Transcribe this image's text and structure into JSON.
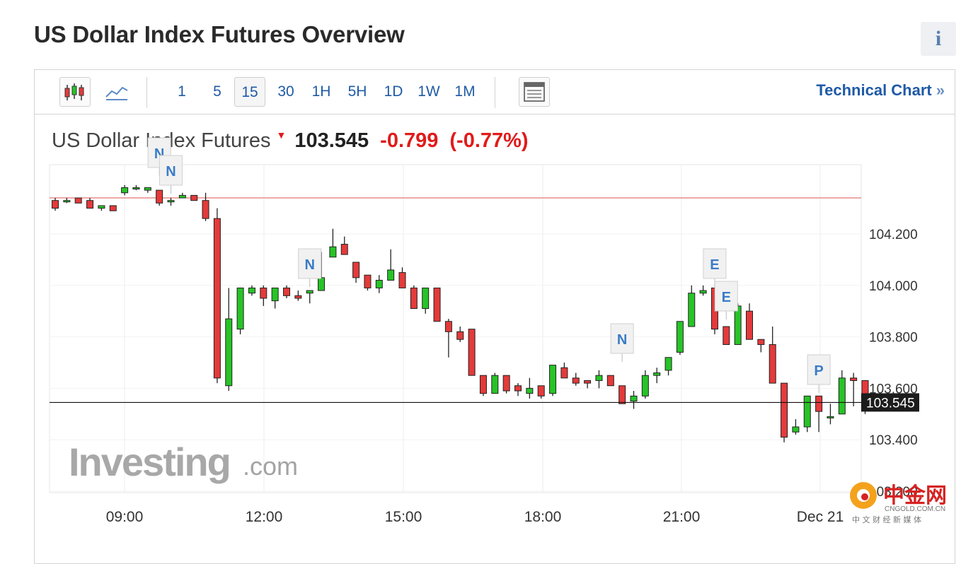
{
  "page": {
    "title": "US Dollar Index Futures Overview",
    "info_label": "i"
  },
  "toolbar": {
    "candles_icon": "candlestick-icon",
    "line_icon": "line-chart-icon",
    "timeframes": [
      "1",
      "5",
      "15",
      "30",
      "1H",
      "5H",
      "1D",
      "1W",
      "1M"
    ],
    "active_timeframe": "15",
    "table_icon": "table-icon",
    "technical_chart_label": "Technical Chart",
    "technical_chart_arrow": "»"
  },
  "quote": {
    "name": "US Dollar Index Futures",
    "price": "103.545",
    "change": "-0.799",
    "change_pct": "(-0.77%)",
    "direction": "down"
  },
  "colors": {
    "up": "#27c427",
    "down": "#e43a3a",
    "accent": "#1f5aa6",
    "ref_line": "#d9534f"
  },
  "watermark": {
    "brand": "Investing",
    "suffix": ".com",
    "corner_brand": "中金网",
    "corner_site": "CNGOLD.COM.CN",
    "corner_sub": "中 文 财 经 新 媒 体"
  },
  "chart_data": {
    "type": "candlestick",
    "x_ticks": [
      "09:00",
      "12:00",
      "15:00",
      "18:00",
      "21:00",
      "Dec 21"
    ],
    "y_ticks": [
      104.2,
      104.0,
      103.8,
      103.6,
      103.4,
      103.2
    ],
    "y_tick_labels": [
      "104.200",
      "104.000",
      "103.800",
      "103.600",
      "103.400",
      "103.200"
    ],
    "ylim": [
      103.2,
      104.44
    ],
    "previous_close": 104.34,
    "last_price": 103.545,
    "last_price_label": "103.545",
    "candles": [
      [
        104.33,
        104.3,
        104.34,
        104.29
      ],
      [
        104.33,
        104.33,
        104.34,
        104.32
      ],
      [
        104.34,
        104.32,
        104.34,
        104.32
      ],
      [
        104.33,
        104.3,
        104.34,
        104.3
      ],
      [
        104.3,
        104.31,
        104.31,
        104.29
      ],
      [
        104.31,
        104.29,
        104.31,
        104.29
      ],
      [
        104.36,
        104.38,
        104.39,
        104.35
      ],
      [
        104.38,
        104.38,
        104.39,
        104.37
      ],
      [
        104.37,
        104.38,
        104.38,
        104.36
      ],
      [
        104.37,
        104.32,
        104.37,
        104.31
      ],
      [
        104.33,
        104.33,
        104.34,
        104.31
      ],
      [
        104.34,
        104.35,
        104.36,
        104.34
      ],
      [
        104.35,
        104.33,
        104.35,
        104.33
      ],
      [
        104.33,
        104.26,
        104.36,
        104.25
      ],
      [
        104.26,
        103.64,
        104.3,
        103.62
      ],
      [
        103.61,
        103.87,
        103.99,
        103.59
      ],
      [
        103.83,
        103.99,
        103.99,
        103.81
      ],
      [
        103.97,
        103.99,
        104.0,
        103.96
      ],
      [
        103.99,
        103.95,
        104.0,
        103.92
      ],
      [
        103.94,
        103.99,
        103.99,
        103.91
      ],
      [
        103.99,
        103.96,
        104.0,
        103.95
      ],
      [
        103.96,
        103.95,
        103.98,
        103.94
      ],
      [
        103.97,
        103.98,
        103.98,
        103.93
      ],
      [
        103.98,
        104.03,
        104.13,
        103.98
      ],
      [
        104.11,
        104.15,
        104.22,
        104.11
      ],
      [
        104.16,
        104.12,
        104.19,
        104.12
      ],
      [
        104.09,
        104.03,
        104.09,
        104.01
      ],
      [
        104.04,
        103.99,
        104.04,
        103.98
      ],
      [
        103.99,
        104.02,
        104.04,
        103.97
      ],
      [
        104.02,
        104.06,
        104.14,
        104.02
      ],
      [
        104.05,
        103.99,
        104.07,
        103.99
      ],
      [
        103.99,
        103.91,
        104.0,
        103.91
      ],
      [
        103.91,
        103.99,
        103.99,
        103.89
      ],
      [
        103.99,
        103.86,
        103.99,
        103.86
      ],
      [
        103.86,
        103.82,
        103.87,
        103.72
      ],
      [
        103.82,
        103.79,
        103.84,
        103.78
      ],
      [
        103.83,
        103.65,
        103.83,
        103.65
      ],
      [
        103.65,
        103.58,
        103.65,
        103.57
      ],
      [
        103.58,
        103.65,
        103.66,
        103.58
      ],
      [
        103.65,
        103.59,
        103.65,
        103.58
      ],
      [
        103.61,
        103.59,
        103.62,
        103.57
      ],
      [
        103.58,
        103.6,
        103.64,
        103.56
      ],
      [
        103.61,
        103.57,
        103.61,
        103.56
      ],
      [
        103.58,
        103.69,
        103.69,
        103.57
      ],
      [
        103.68,
        103.64,
        103.7,
        103.64
      ],
      [
        103.64,
        103.62,
        103.66,
        103.61
      ],
      [
        103.63,
        103.62,
        103.63,
        103.6
      ],
      [
        103.63,
        103.65,
        103.67,
        103.6
      ],
      [
        103.65,
        103.61,
        103.65,
        103.61
      ],
      [
        103.61,
        103.54,
        103.61,
        103.54
      ],
      [
        103.55,
        103.57,
        103.59,
        103.52
      ],
      [
        103.57,
        103.65,
        103.67,
        103.56
      ],
      [
        103.65,
        103.66,
        103.68,
        103.62
      ],
      [
        103.67,
        103.72,
        103.72,
        103.65
      ],
      [
        103.74,
        103.86,
        103.86,
        103.73
      ],
      [
        103.84,
        103.97,
        104.0,
        103.84
      ],
      [
        103.97,
        103.98,
        104.0,
        103.96
      ],
      [
        103.99,
        103.83,
        103.99,
        103.81
      ],
      [
        103.84,
        103.77,
        103.84,
        103.77
      ],
      [
        103.77,
        103.92,
        103.93,
        103.77
      ],
      [
        103.9,
        103.79,
        103.93,
        103.79
      ],
      [
        103.79,
        103.77,
        103.79,
        103.74
      ],
      [
        103.77,
        103.62,
        103.84,
        103.62
      ],
      [
        103.62,
        103.41,
        103.62,
        103.39
      ],
      [
        103.43,
        103.45,
        103.48,
        103.42
      ],
      [
        103.45,
        103.57,
        103.57,
        103.43
      ],
      [
        103.57,
        103.51,
        103.57,
        103.43
      ],
      [
        103.49,
        103.49,
        103.54,
        103.46
      ],
      [
        103.5,
        103.64,
        103.67,
        103.5
      ],
      [
        103.64,
        103.63,
        103.66,
        103.53
      ],
      [
        103.63,
        103.54,
        103.63,
        103.5
      ]
    ],
    "events": [
      {
        "label": "N",
        "candle": 9,
        "row": 0
      },
      {
        "label": "N",
        "candle": 10,
        "row": 1
      },
      {
        "label": "N",
        "candle": 22,
        "row": 0
      },
      {
        "label": "N",
        "candle": 49,
        "row": 0
      },
      {
        "label": "E",
        "candle": 57,
        "row": 0
      },
      {
        "label": "E",
        "candle": 58,
        "row": 1
      },
      {
        "label": "P",
        "candle": 66,
        "row": 0
      }
    ]
  }
}
